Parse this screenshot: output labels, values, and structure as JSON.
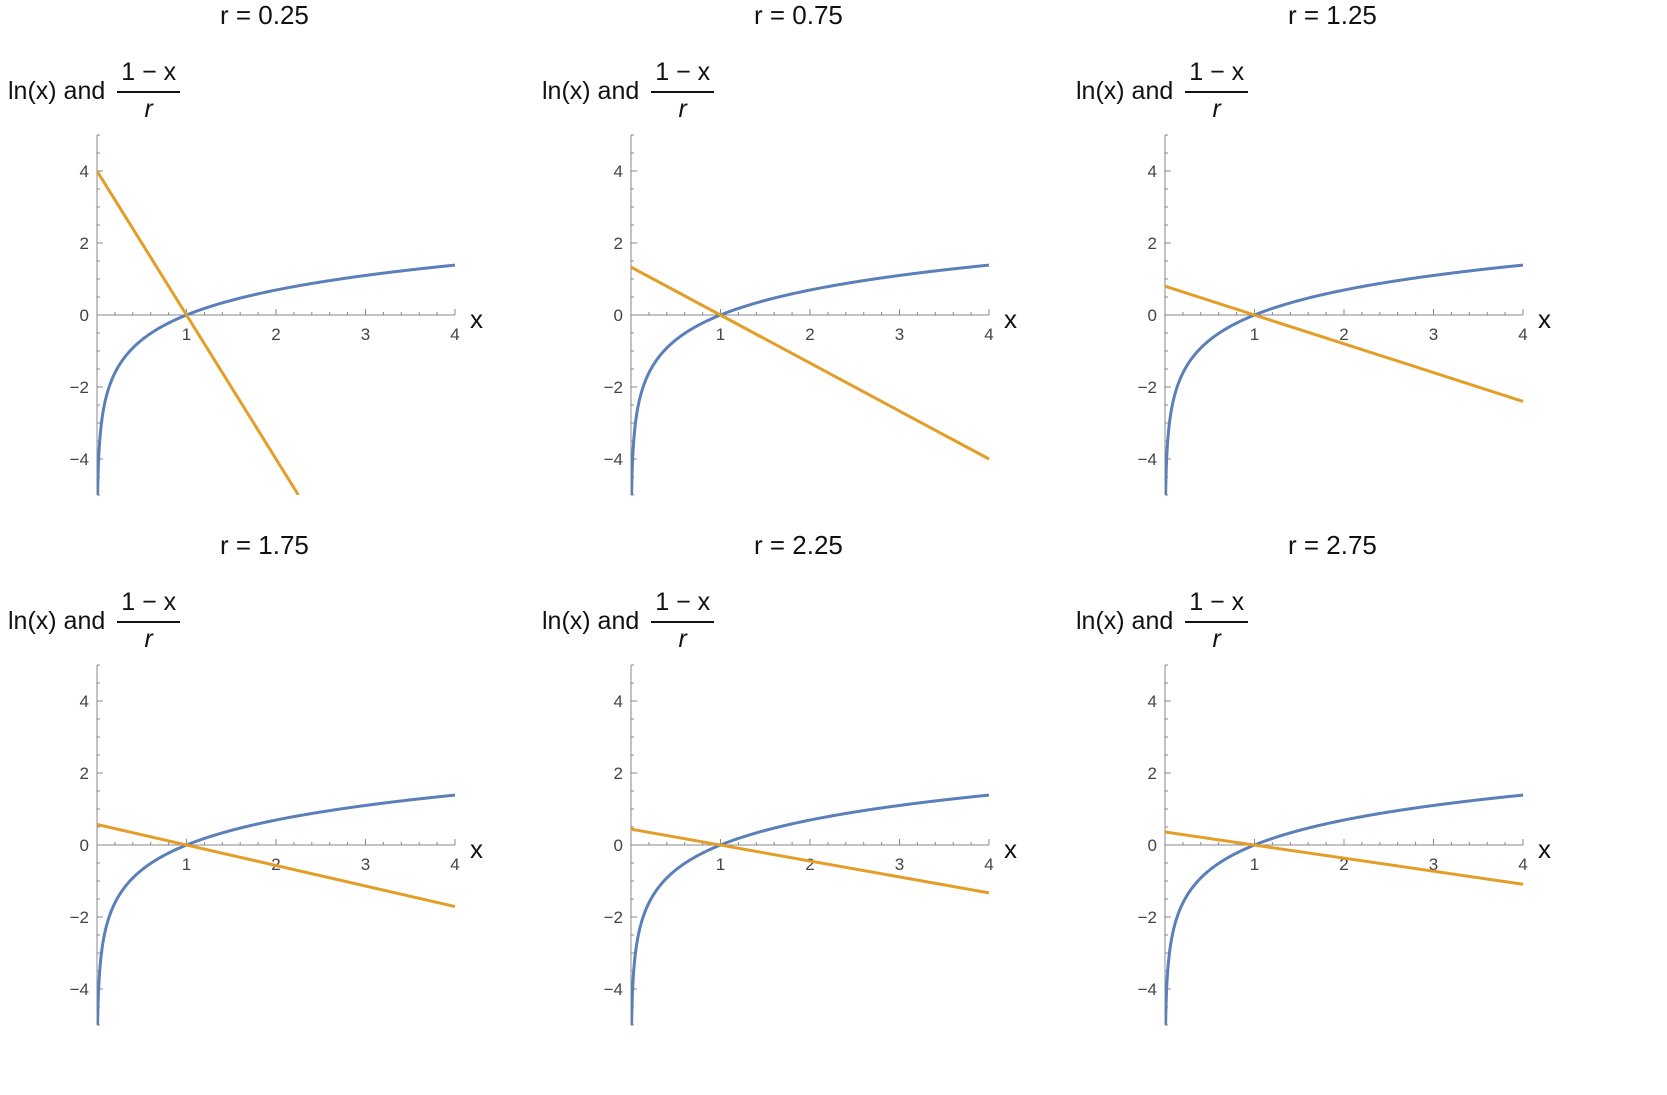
{
  "colors": {
    "ln_curve": "#5b7fb8",
    "line": "#e39e27",
    "axis": "#888888"
  },
  "chart_data": [
    {
      "type": "line",
      "title": "r = 0.25",
      "r": 0.25,
      "ylabel": {
        "prefix": "ln(x) and",
        "numerator": "1 − x",
        "denominator": "r"
      },
      "xlabel": "x",
      "xlim": [
        0,
        4
      ],
      "ylim": [
        -5,
        5
      ],
      "xticks": [
        1,
        2,
        3,
        4
      ],
      "yticks": [
        -4,
        -2,
        0,
        2,
        4
      ],
      "series": [
        {
          "expr": "ln(x)",
          "color": "#5b7fb8",
          "x": [
            0.0067,
            0.01,
            0.02,
            0.05,
            0.1,
            0.2,
            0.3,
            0.5,
            0.75,
            1,
            1.5,
            2,
            2.5,
            3,
            3.5,
            4
          ],
          "y": [
            -5,
            -4.61,
            -3.91,
            -3.0,
            -2.3,
            -1.61,
            -1.2,
            -0.69,
            -0.29,
            0,
            0.41,
            0.69,
            0.92,
            1.1,
            1.25,
            1.39
          ]
        },
        {
          "expr": "(1 − x)/r",
          "color": "#e39e27",
          "x": [
            0,
            2.25
          ],
          "y": [
            4,
            -5
          ]
        }
      ]
    },
    {
      "type": "line",
      "title": "r = 0.75",
      "r": 0.75,
      "ylabel": {
        "prefix": "ln(x) and",
        "numerator": "1 − x",
        "denominator": "r"
      },
      "xlabel": "x",
      "xlim": [
        0,
        4
      ],
      "ylim": [
        -5,
        5
      ],
      "xticks": [
        1,
        2,
        3,
        4
      ],
      "yticks": [
        -4,
        -2,
        0,
        2,
        4
      ],
      "series": [
        {
          "expr": "ln(x)",
          "color": "#5b7fb8",
          "x": [
            0.0067,
            0.01,
            0.02,
            0.05,
            0.1,
            0.2,
            0.3,
            0.5,
            0.75,
            1,
            1.5,
            2,
            2.5,
            3,
            3.5,
            4
          ],
          "y": [
            -5,
            -4.61,
            -3.91,
            -3.0,
            -2.3,
            -1.61,
            -1.2,
            -0.69,
            -0.29,
            0,
            0.41,
            0.69,
            0.92,
            1.1,
            1.25,
            1.39
          ]
        },
        {
          "expr": "(1 − x)/r",
          "color": "#e39e27",
          "x": [
            0,
            4
          ],
          "y": [
            1.33,
            -4
          ]
        }
      ]
    },
    {
      "type": "line",
      "title": "r = 1.25",
      "r": 1.25,
      "ylabel": {
        "prefix": "ln(x) and",
        "numerator": "1 − x",
        "denominator": "r"
      },
      "xlabel": "x",
      "xlim": [
        0,
        4
      ],
      "ylim": [
        -5,
        5
      ],
      "xticks": [
        1,
        2,
        3,
        4
      ],
      "yticks": [
        -4,
        -2,
        0,
        2,
        4
      ],
      "series": [
        {
          "expr": "ln(x)",
          "color": "#5b7fb8",
          "x": [
            0.0067,
            0.01,
            0.02,
            0.05,
            0.1,
            0.2,
            0.3,
            0.5,
            0.75,
            1,
            1.5,
            2,
            2.5,
            3,
            3.5,
            4
          ],
          "y": [
            -5,
            -4.61,
            -3.91,
            -3.0,
            -2.3,
            -1.61,
            -1.2,
            -0.69,
            -0.29,
            0,
            0.41,
            0.69,
            0.92,
            1.1,
            1.25,
            1.39
          ]
        },
        {
          "expr": "(1 − x)/r",
          "color": "#e39e27",
          "x": [
            0,
            4
          ],
          "y": [
            0.8,
            -2.4
          ]
        }
      ]
    },
    {
      "type": "line",
      "title": "r = 1.75",
      "r": 1.75,
      "ylabel": {
        "prefix": "ln(x) and",
        "numerator": "1 − x",
        "denominator": "r"
      },
      "xlabel": "x",
      "xlim": [
        0,
        4
      ],
      "ylim": [
        -5,
        5
      ],
      "xticks": [
        1,
        2,
        3,
        4
      ],
      "yticks": [
        -4,
        -2,
        0,
        2,
        4
      ],
      "series": [
        {
          "expr": "ln(x)",
          "color": "#5b7fb8",
          "x": [
            0.0067,
            0.01,
            0.02,
            0.05,
            0.1,
            0.2,
            0.3,
            0.5,
            0.75,
            1,
            1.5,
            2,
            2.5,
            3,
            3.5,
            4
          ],
          "y": [
            -5,
            -4.61,
            -3.91,
            -3.0,
            -2.3,
            -1.61,
            -1.2,
            -0.69,
            -0.29,
            0,
            0.41,
            0.69,
            0.92,
            1.1,
            1.25,
            1.39
          ]
        },
        {
          "expr": "(1 − x)/r",
          "color": "#e39e27",
          "x": [
            0,
            4
          ],
          "y": [
            0.57,
            -1.71
          ]
        }
      ]
    },
    {
      "type": "line",
      "title": "r = 2.25",
      "r": 2.25,
      "ylabel": {
        "prefix": "ln(x) and",
        "numerator": "1 − x",
        "denominator": "r"
      },
      "xlabel": "x",
      "xlim": [
        0,
        4
      ],
      "ylim": [
        -5,
        5
      ],
      "xticks": [
        1,
        2,
        3,
        4
      ],
      "yticks": [
        -4,
        -2,
        0,
        2,
        4
      ],
      "series": [
        {
          "expr": "ln(x)",
          "color": "#5b7fb8",
          "x": [
            0.0067,
            0.01,
            0.02,
            0.05,
            0.1,
            0.2,
            0.3,
            0.5,
            0.75,
            1,
            1.5,
            2,
            2.5,
            3,
            3.5,
            4
          ],
          "y": [
            -5,
            -4.61,
            -3.91,
            -3.0,
            -2.3,
            -1.61,
            -1.2,
            -0.69,
            -0.29,
            0,
            0.41,
            0.69,
            0.92,
            1.1,
            1.25,
            1.39
          ]
        },
        {
          "expr": "(1 − x)/r",
          "color": "#e39e27",
          "x": [
            0,
            4
          ],
          "y": [
            0.44,
            -1.33
          ]
        }
      ]
    },
    {
      "type": "line",
      "title": "r = 2.75",
      "r": 2.75,
      "ylabel": {
        "prefix": "ln(x) and",
        "numerator": "1 − x",
        "denominator": "r"
      },
      "xlabel": "x",
      "xlim": [
        0,
        4
      ],
      "ylim": [
        -5,
        5
      ],
      "xticks": [
        1,
        2,
        3,
        4
      ],
      "yticks": [
        -4,
        -2,
        0,
        2,
        4
      ],
      "series": [
        {
          "expr": "ln(x)",
          "color": "#5b7fb8",
          "x": [
            0.0067,
            0.01,
            0.02,
            0.05,
            0.1,
            0.2,
            0.3,
            0.5,
            0.75,
            1,
            1.5,
            2,
            2.5,
            3,
            3.5,
            4
          ],
          "y": [
            -5,
            -4.61,
            -3.91,
            -3.0,
            -2.3,
            -1.61,
            -1.2,
            -0.69,
            -0.29,
            0,
            0.41,
            0.69,
            0.92,
            1.1,
            1.25,
            1.39
          ]
        },
        {
          "expr": "(1 − x)/r",
          "color": "#e39e27",
          "x": [
            0,
            4
          ],
          "y": [
            0.36,
            -1.09
          ]
        }
      ]
    }
  ]
}
